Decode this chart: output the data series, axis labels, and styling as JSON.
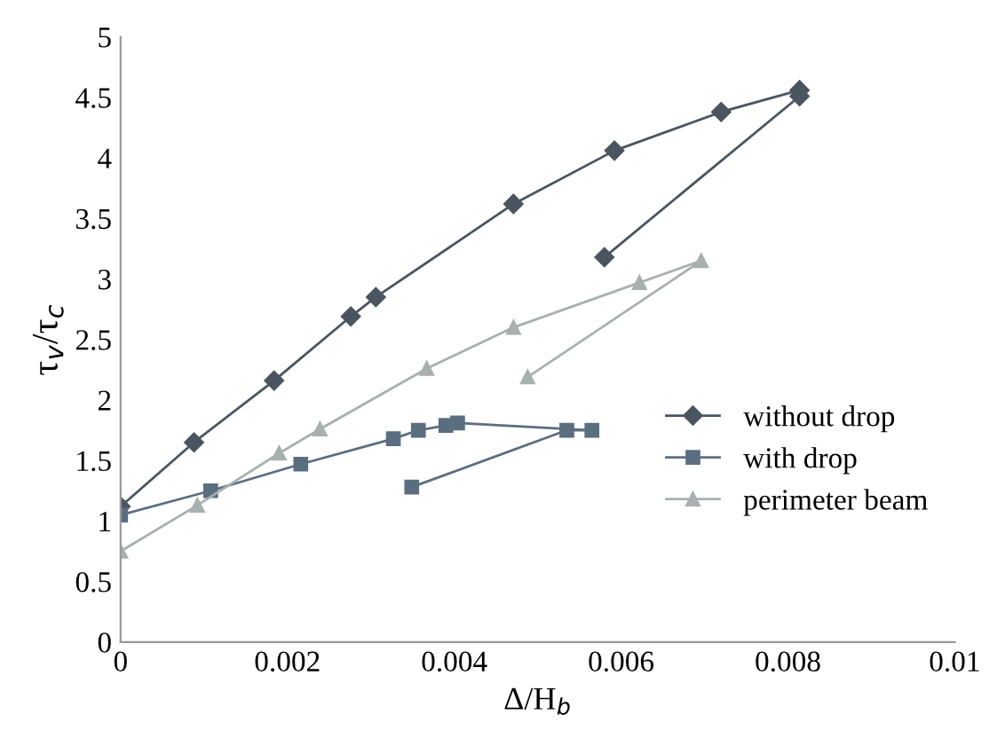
{
  "chart_data": {
    "type": "line",
    "xlabel": "Δ/H$_{b}$",
    "ylabel": "τ$_{v}$/τ$_{c}$",
    "xlim": [
      0,
      0.01
    ],
    "xticks": [
      0,
      0.002,
      0.004,
      0.006,
      0.008,
      0.01
    ],
    "ylim": [
      0,
      5
    ],
    "yticks": [
      0,
      0.5,
      1,
      1.5,
      2,
      2.5,
      3,
      3.5,
      4,
      4.5,
      5
    ],
    "grid": false,
    "legend": "right",
    "series": [
      {
        "name": "without drop",
        "color": "#4a5560",
        "marker": "diamond",
        "x": [
          0,
          0.00088,
          0.00184,
          0.00276,
          0.00306,
          0.00471,
          0.00592,
          0.0072,
          0.00814,
          0.00814,
          0.0058
        ],
        "values": [
          1.12,
          1.65,
          2.16,
          2.69,
          2.85,
          3.62,
          4.06,
          4.38,
          4.56,
          4.51,
          3.18
        ]
      },
      {
        "name": "with drop",
        "color": "#5a6e80",
        "marker": "square",
        "x": [
          0,
          0.00108,
          0.00216,
          0.00327,
          0.00357,
          0.0039,
          0.00404,
          0.00565,
          0.00535,
          0.00349
        ],
        "values": [
          1.05,
          1.25,
          1.47,
          1.68,
          1.75,
          1.79,
          1.81,
          1.75,
          1.75,
          1.28
        ]
      },
      {
        "name": "perimeter beam",
        "color": "#a8b0b0",
        "marker": "triangle",
        "x": [
          0,
          0.00092,
          0.0019,
          0.00239,
          0.00367,
          0.00471,
          0.00622,
          0.00696,
          0.00488
        ],
        "values": [
          0.75,
          1.13,
          1.56,
          1.76,
          2.26,
          2.6,
          2.97,
          3.15,
          2.19
        ]
      }
    ]
  }
}
